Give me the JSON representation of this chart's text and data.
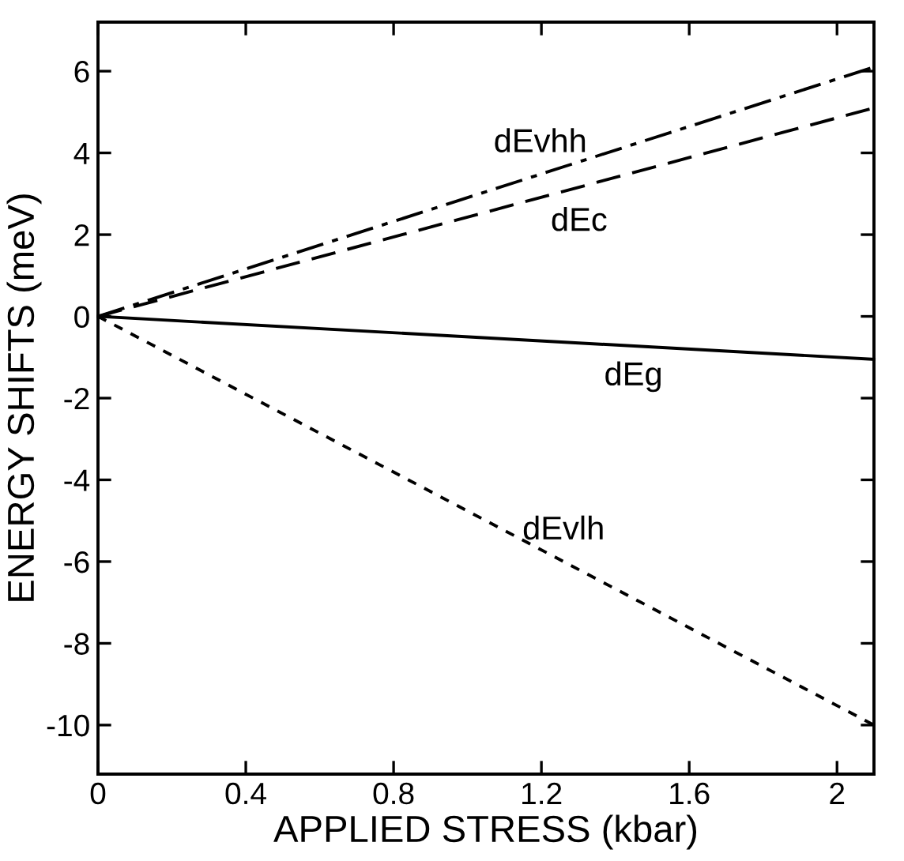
{
  "chart_data": {
    "type": "line",
    "xlabel": "APPLIED STRESS (kbar)",
    "ylabel": "ENERGY SHIFTS (meV)",
    "xlim": [
      0,
      2.1
    ],
    "ylim": [
      -11.2,
      7.2
    ],
    "xticks": [
      0,
      0.4,
      0.8,
      1.2,
      1.6,
      2
    ],
    "yticks": [
      -10,
      -8,
      -6,
      -4,
      -2,
      0,
      2,
      4,
      6
    ],
    "grid": false,
    "legend": false,
    "marker": "none",
    "x": [
      0,
      2.1
    ],
    "series": [
      {
        "name": "dEvhh",
        "color": "#000000",
        "line_style": "dashdot",
        "values": [
          0,
          6.1
        ]
      },
      {
        "name": "dEc",
        "color": "#000000",
        "line_style": "dashed",
        "values": [
          0,
          5.1
        ]
      },
      {
        "name": "dEg",
        "color": "#000000",
        "line_style": "solid",
        "values": [
          0,
          -1.05
        ]
      },
      {
        "name": "dEvlh",
        "color": "#000000",
        "line_style": "dotted",
        "values": [
          0,
          -10
        ]
      }
    ]
  }
}
